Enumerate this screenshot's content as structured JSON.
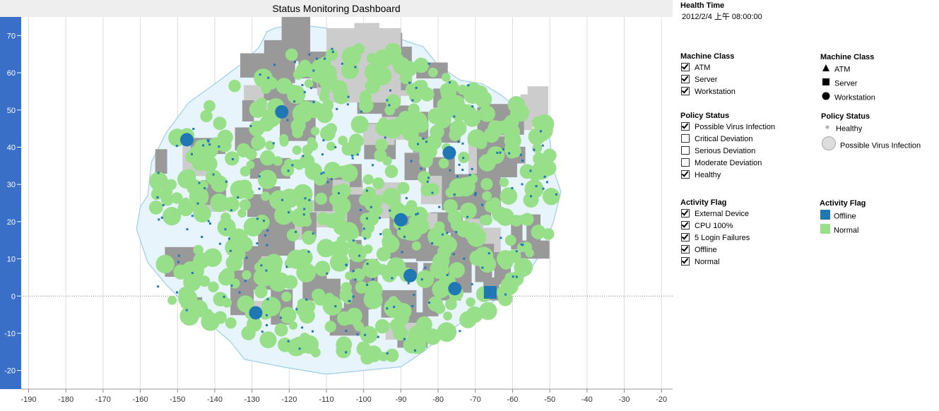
{
  "chart_data": {
    "type": "scatter",
    "title": "Status Monitoring Dashboard",
    "xlabel": "",
    "ylabel": "",
    "xlim": [
      -192,
      -17
    ],
    "ylim": [
      -25,
      75
    ],
    "x_ticks": [
      -190,
      -180,
      -170,
      -160,
      -150,
      -140,
      -130,
      -120,
      -110,
      -100,
      -90,
      -80,
      -70,
      -60,
      -50,
      -40,
      -30,
      -20
    ],
    "y_ticks": [
      -20,
      -10,
      0,
      10,
      20,
      30,
      40,
      50,
      60,
      70
    ],
    "grid": "vertical",
    "zero_line": "dotted",
    "colors": {
      "offline": "#1f77b4",
      "normal": "#98df8a",
      "map_fill": "#e8f4fb",
      "map_stroke": "#9ccfe8",
      "gray_block": "#999999",
      "light_gray_block": "#cccccc",
      "y_axis_band": "#3a6fc8"
    },
    "highlighted_points": [
      {
        "x": -147.5,
        "y": 42,
        "class": "Workstation",
        "status": "Possible Virus Infection",
        "flag": "Offline"
      },
      {
        "x": -122,
        "y": 49.5,
        "class": "Workstation",
        "status": "Possible Virus Infection",
        "flag": "Offline"
      },
      {
        "x": -77,
        "y": 38.5,
        "class": "Workstation",
        "status": "Possible Virus Infection",
        "flag": "Offline"
      },
      {
        "x": -90,
        "y": 20.5,
        "class": "Workstation",
        "status": "Possible Virus Infection",
        "flag": "Offline"
      },
      {
        "x": -87.5,
        "y": 5.5,
        "class": "Workstation",
        "status": "Possible Virus Infection",
        "flag": "Offline"
      },
      {
        "x": -75.5,
        "y": 2,
        "class": "Workstation",
        "status": "Possible Virus Infection",
        "flag": "Offline"
      },
      {
        "x": -66,
        "y": 1,
        "class": "Server",
        "status": "Possible Virus Infection",
        "flag": "Offline"
      },
      {
        "x": -129,
        "y": -4.5,
        "class": "Workstation",
        "status": "Possible Virus Infection",
        "flag": "Offline"
      }
    ]
  },
  "sidebar": {
    "health_time_title": "Health Time",
    "health_time_value": "2012/2/4 上午 08:00:00",
    "filters": [
      {
        "title": "Machine Class",
        "items": [
          {
            "label": "ATM",
            "checked": true
          },
          {
            "label": "Server",
            "checked": true
          },
          {
            "label": "Workstation",
            "checked": true
          }
        ]
      },
      {
        "title": "Policy Status",
        "items": [
          {
            "label": "Possible Virus Infection",
            "checked": true
          },
          {
            "label": "Critical Deviation",
            "checked": false
          },
          {
            "label": "Serious Deviation",
            "checked": false
          },
          {
            "label": "Moderate Deviation",
            "checked": false
          },
          {
            "label": "Healthy",
            "checked": true
          }
        ]
      },
      {
        "title": "Activity Flag",
        "items": [
          {
            "label": "External Device",
            "checked": true
          },
          {
            "label": "CPU 100%",
            "checked": true
          },
          {
            "label": "5 Login Failures",
            "checked": true
          },
          {
            "label": "Offline",
            "checked": true
          },
          {
            "label": "Normal",
            "checked": true
          }
        ]
      }
    ],
    "legends": [
      {
        "title": "Machine Class",
        "items": [
          {
            "label": "ATM",
            "symbol": "triangle-icon"
          },
          {
            "label": "Server",
            "symbol": "square-icon"
          },
          {
            "label": "Workstation",
            "symbol": "circle-icon"
          }
        ]
      },
      {
        "title": "Policy Status",
        "items": [
          {
            "label": "Healthy",
            "symbol": "small-circle-icon"
          },
          {
            "label": "Possible Virus Infection",
            "symbol": "large-circle-icon"
          }
        ]
      },
      {
        "title": "Activity Flag",
        "items": [
          {
            "label": "Offline",
            "symbol": "offline-swatch-icon",
            "color": "#1f77b4"
          },
          {
            "label": "Normal",
            "symbol": "normal-swatch-icon",
            "color": "#98df8a"
          }
        ]
      }
    ]
  }
}
